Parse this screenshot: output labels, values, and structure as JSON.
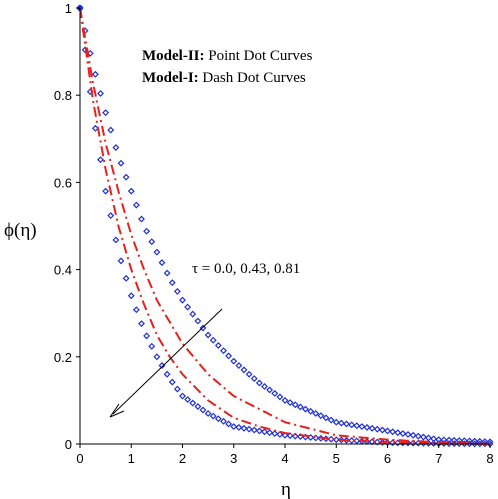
{
  "chart_data": {
    "type": "line",
    "xlabel": "η",
    "ylabel": "ϕ(η)",
    "xlim": [
      0,
      8
    ],
    "ylim": [
      0,
      1
    ],
    "xticks": [
      "0",
      "1",
      "2",
      "3",
      "4",
      "5",
      "6",
      "7",
      "8"
    ],
    "yticks": [
      "0",
      "0.2",
      "0.4",
      "0.6",
      "0.8",
      "1"
    ],
    "legend": [
      {
        "bold": "Model-II:",
        "text": " Point Dot Curves"
      },
      {
        "bold": "Model-I:",
        "text": " Dash Dot Curves"
      }
    ],
    "annotation": "τ = 0.0, 0.43, 0.81",
    "series": [
      {
        "style": "point-dot",
        "color": "#1f2fd6",
        "tau": 0.0,
        "x": [
          0,
          0.25,
          0.5,
          0.75,
          1.0,
          1.25,
          1.5,
          1.75,
          2.0,
          2.5,
          3.0,
          3.5,
          4.0,
          5.0,
          6.0,
          7.0,
          8.0
        ],
        "y": [
          1,
          0.87,
          0.76,
          0.66,
          0.58,
          0.5,
          0.44,
          0.38,
          0.33,
          0.25,
          0.19,
          0.14,
          0.1,
          0.05,
          0.03,
          0.01,
          0.005
        ]
      },
      {
        "style": "point-dot",
        "color": "#1f2fd6",
        "tau": 0.81,
        "x": [
          0,
          0.25,
          0.5,
          0.75,
          1.0,
          1.25,
          1.5,
          1.75,
          2.0,
          2.5,
          3.0,
          3.5,
          4.0,
          5.0,
          6.0,
          7.0,
          8.0
        ],
        "y": [
          1,
          0.76,
          0.58,
          0.44,
          0.34,
          0.26,
          0.2,
          0.15,
          0.11,
          0.07,
          0.04,
          0.03,
          0.02,
          0.01,
          0.003,
          0.001,
          0
        ]
      },
      {
        "style": "dash-dot",
        "color": "#e8201c",
        "tau": 0.0,
        "x": [
          0,
          0.25,
          0.5,
          0.75,
          1.0,
          1.25,
          1.5,
          1.75,
          2.0,
          2.5,
          3.0,
          3.5,
          4.0,
          5.0,
          6.0,
          7.0,
          8.0
        ],
        "y": [
          1,
          0.83,
          0.69,
          0.58,
          0.48,
          0.4,
          0.33,
          0.28,
          0.23,
          0.16,
          0.11,
          0.08,
          0.05,
          0.02,
          0.01,
          0.004,
          0
        ]
      },
      {
        "style": "dash-dot",
        "color": "#e8201c",
        "tau": 0.81,
        "x": [
          0,
          0.25,
          0.5,
          0.75,
          1.0,
          1.25,
          1.5,
          1.75,
          2.0,
          2.5,
          3.0,
          3.5,
          4.0,
          5.0,
          6.0,
          7.0,
          8.0
        ],
        "y": [
          1,
          0.79,
          0.63,
          0.5,
          0.4,
          0.32,
          0.25,
          0.2,
          0.16,
          0.1,
          0.06,
          0.04,
          0.025,
          0.01,
          0.004,
          0.001,
          0
        ]
      }
    ],
    "grid": false
  }
}
